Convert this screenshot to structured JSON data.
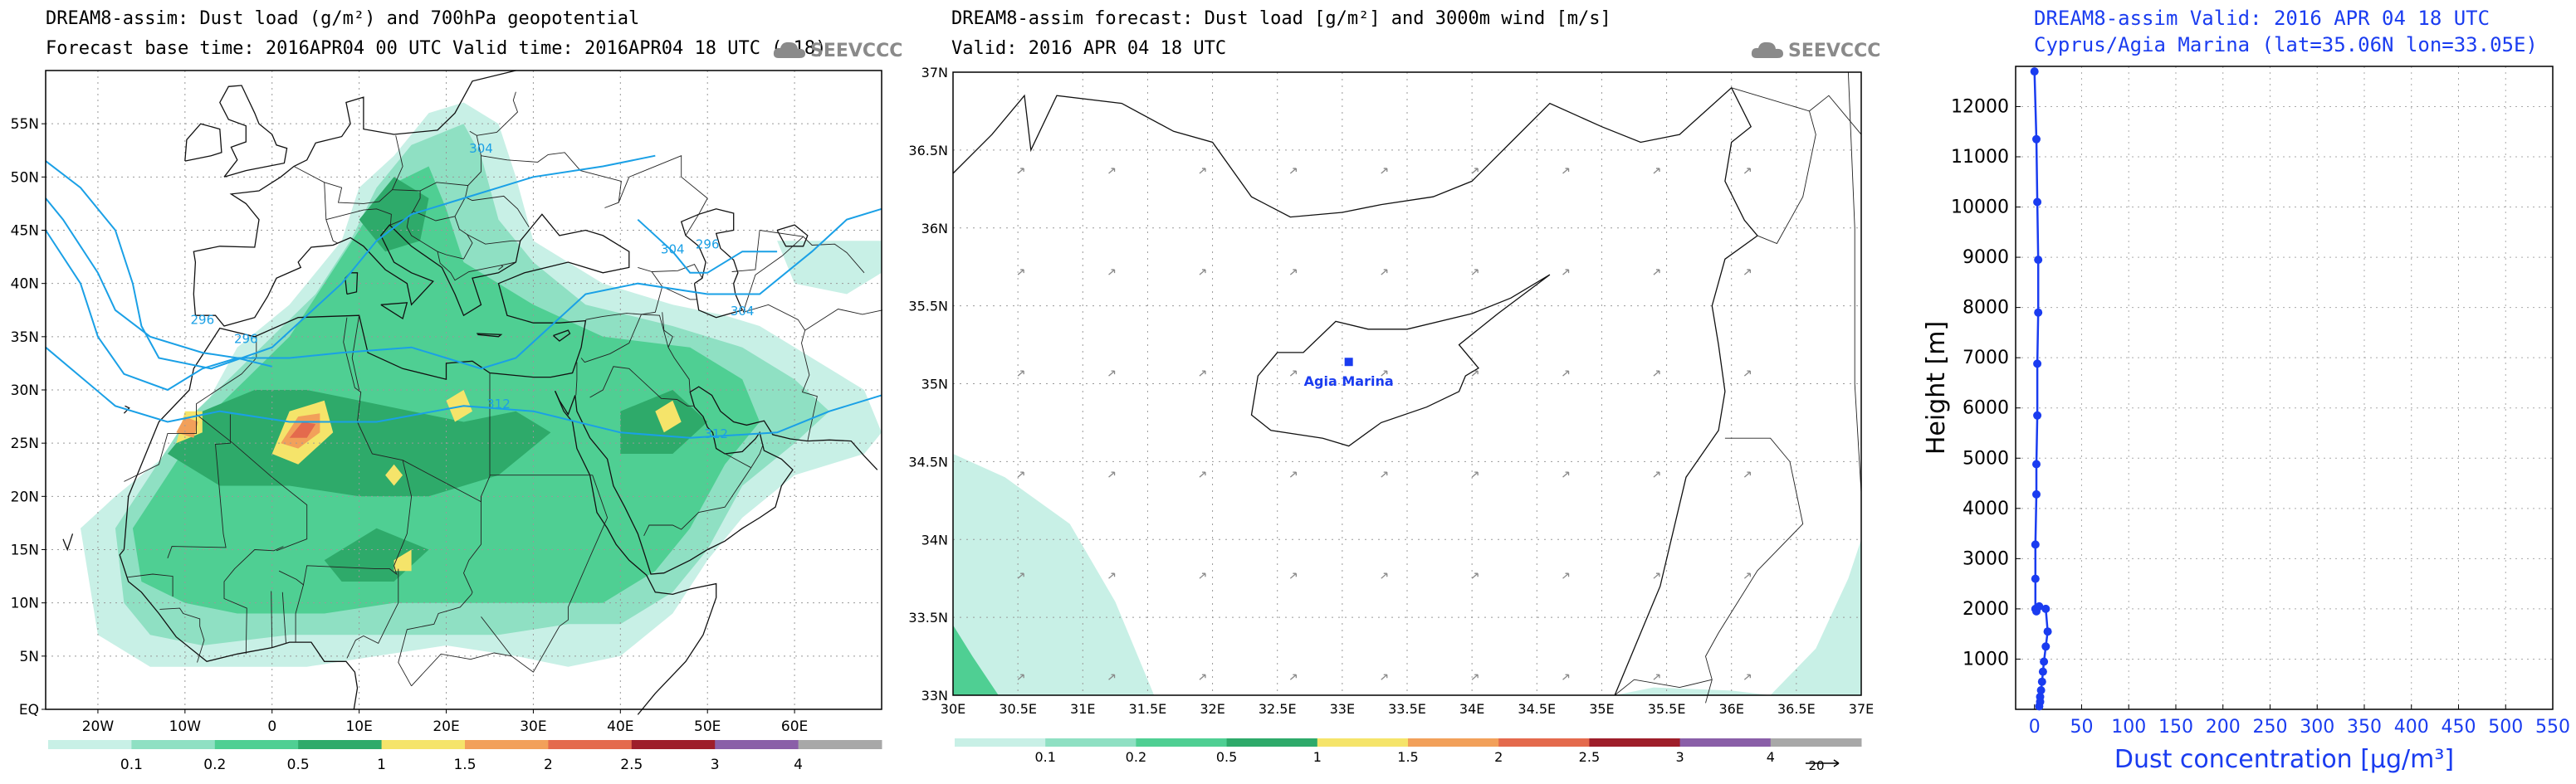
{
  "panel1": {
    "title_line1": "DREAM8-assim: Dust load (g/m²) and 700hPa geopotential",
    "title_line2": "Forecast base time: 2016APR04 00 UTC  Valid time: 2016APR04 18 UTC  (+18)",
    "logo": "SEEVCCC",
    "lat_labels": [
      "55N",
      "50N",
      "45N",
      "40N",
      "35N",
      "30N",
      "25N",
      "20N",
      "15N",
      "10N",
      "5N",
      "EQ"
    ],
    "lon_labels": [
      "20W",
      "10W",
      "0",
      "10E",
      "20E",
      "30E",
      "40E",
      "50E",
      "60E"
    ],
    "contour_labels": [
      "304",
      "296",
      "296",
      "304",
      "312",
      "312",
      "296",
      "304"
    ],
    "colorbar_labels": [
      "0.1",
      "0.2",
      "0.5",
      "1",
      "1.5",
      "2",
      "2.5",
      "3",
      "4"
    ]
  },
  "panel2": {
    "title_line1": "DREAM8-assim forecast: Dust load [g/m²] and 3000m wind [m/s]",
    "title_line2": "Valid: 2016 APR 04   18 UTC",
    "logo": "SEEVCCC",
    "station_label": "Agia Marina",
    "lat_labels": [
      "37N",
      "36.5N",
      "36N",
      "35.5N",
      "35N",
      "34.5N",
      "34N",
      "33.5N",
      "33N"
    ],
    "lon_labels": [
      "30E",
      "30.5E",
      "31E",
      "31.5E",
      "32E",
      "32.5E",
      "33E",
      "33.5E",
      "34E",
      "34.5E",
      "35E",
      "35.5E",
      "36E",
      "36.5E",
      "37E"
    ],
    "colorbar_labels": [
      "0.1",
      "0.2",
      "0.5",
      "1",
      "1.5",
      "2",
      "2.5",
      "3",
      "4"
    ],
    "wind_ref_label": "20"
  },
  "panel3": {
    "title_line1": "DREAM8-assim   Valid: 2016 APR 04   18 UTC",
    "title_line2": "Cyprus/Agia Marina (lat=35.06N lon=33.05E)"
  },
  "chart_data": [
    {
      "type": "map",
      "title": "DREAM8-assim: Dust load (g/m²) and 700hPa geopotential",
      "subtitle": "Forecast base time: 2016APR04 00 UTC  Valid time: 2016APR04 18 UTC  (+18)",
      "lon_range": [
        -26,
        70
      ],
      "lat_range": [
        0,
        60
      ],
      "colorbar_levels": [
        0.1,
        0.2,
        0.5,
        1,
        1.5,
        2,
        2.5,
        3,
        4
      ],
      "colorbar_colors": [
        "#c8f0e6",
        "#8fe0c3",
        "#4fcf93",
        "#2eaa6a",
        "#f5e46a",
        "#f2a05a",
        "#e46a4d",
        "#9e1e2a",
        "#8a5fa8",
        "#a8a8a8"
      ],
      "contours_700hPa": [
        296,
        304,
        312
      ]
    },
    {
      "type": "map",
      "title": "DREAM8-assim forecast: Dust load [g/m²] and 3000m wind [m/s]",
      "subtitle": "Valid: 2016 APR 04   18 UTC",
      "lon_range": [
        30,
        37
      ],
      "lat_range": [
        33,
        37
      ],
      "station": {
        "name": "Agia Marina",
        "lon": 33.05,
        "lat": 35.06
      },
      "colorbar_levels": [
        0.1,
        0.2,
        0.5,
        1,
        1.5,
        2,
        2.5,
        3,
        4
      ],
      "wind_reference": 20
    },
    {
      "type": "line",
      "title": "DREAM8-assim   Valid: 2016 APR 04   18 UTC",
      "subtitle": "Cyprus/Agia Marina (lat=35.06N lon=33.05E)",
      "xlabel": "Dust concentration [µg/m³]",
      "ylabel": "Height [m]",
      "xlim": [
        -20,
        550
      ],
      "ylim": [
        0,
        12800
      ],
      "xticks": [
        0,
        50,
        100,
        150,
        200,
        250,
        300,
        350,
        400,
        450,
        500,
        550
      ],
      "yticks": [
        1000,
        2000,
        3000,
        4000,
        5000,
        6000,
        7000,
        8000,
        9000,
        10000,
        11000,
        12000
      ],
      "grid": true,
      "color": "#1a3cf0",
      "series": [
        {
          "x": [
            0,
            2,
            3,
            4,
            4,
            3,
            3,
            2,
            2,
            1,
            1,
            1,
            2,
            5,
            12,
            14,
            12,
            10,
            9,
            8,
            7,
            6,
            6,
            5
          ],
          "y": [
            12700,
            11350,
            10100,
            8950,
            7900,
            6880,
            5850,
            4880,
            4280,
            3280,
            2600,
            2000,
            1950,
            2050,
            2000,
            1550,
            1250,
            950,
            750,
            550,
            380,
            250,
            150,
            60
          ]
        }
      ]
    }
  ]
}
